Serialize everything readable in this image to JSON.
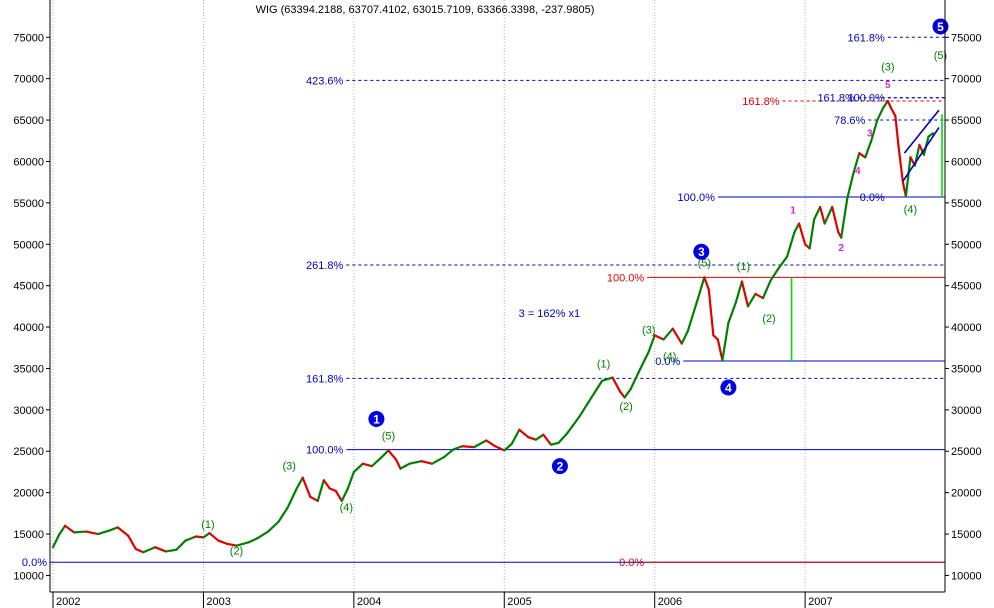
{
  "chart_data": {
    "type": "line",
    "title": "WIG (63394.2188, 63707.4102, 63015.7109, 63366.3398, -237.9805)",
    "y_ticks": [
      10000,
      15000,
      20000,
      25000,
      30000,
      35000,
      40000,
      45000,
      50000,
      55000,
      60000,
      65000,
      70000,
      75000
    ],
    "ylim": [
      8000,
      79500
    ],
    "x_ticks": [
      "2002",
      "2003",
      "2004",
      "2005",
      "2006",
      "2007"
    ],
    "xlim": [
      2001.98,
      2007.93
    ],
    "grid": "vertical",
    "series": [
      {
        "color_up": "#008000",
        "color_down": "#e00000",
        "points": [
          [
            2002.0,
            13400
          ],
          [
            2002.04,
            14900
          ],
          [
            2002.08,
            16000
          ],
          [
            2002.14,
            15200
          ],
          [
            2002.22,
            15300
          ],
          [
            2002.3,
            15000
          ],
          [
            2002.37,
            15400
          ],
          [
            2002.43,
            15800
          ],
          [
            2002.5,
            14800
          ],
          [
            2002.55,
            13200
          ],
          [
            2002.6,
            12800
          ],
          [
            2002.68,
            13400
          ],
          [
            2002.75,
            12900
          ],
          [
            2002.82,
            13100
          ],
          [
            2002.88,
            14200
          ],
          [
            2002.95,
            14700
          ],
          [
            2003.0,
            14600
          ],
          [
            2003.04,
            15100
          ],
          [
            2003.1,
            14200
          ],
          [
            2003.16,
            13800
          ],
          [
            2003.22,
            13600
          ],
          [
            2003.3,
            14000
          ],
          [
            2003.36,
            14500
          ],
          [
            2003.43,
            15300
          ],
          [
            2003.5,
            16500
          ],
          [
            2003.56,
            18200
          ],
          [
            2003.62,
            20500
          ],
          [
            2003.66,
            21800
          ],
          [
            2003.71,
            19500
          ],
          [
            2003.76,
            19000
          ],
          [
            2003.8,
            21500
          ],
          [
            2003.84,
            20500
          ],
          [
            2003.88,
            20200
          ],
          [
            2003.92,
            19000
          ],
          [
            2003.96,
            20500
          ],
          [
            2004.0,
            22500
          ],
          [
            2004.06,
            23500
          ],
          [
            2004.12,
            23200
          ],
          [
            2004.18,
            24200
          ],
          [
            2004.23,
            25100
          ],
          [
            2004.28,
            24000
          ],
          [
            2004.31,
            22900
          ],
          [
            2004.37,
            23500
          ],
          [
            2004.45,
            23800
          ],
          [
            2004.52,
            23500
          ],
          [
            2004.6,
            24300
          ],
          [
            2004.66,
            25200
          ],
          [
            2004.72,
            25600
          ],
          [
            2004.8,
            25500
          ],
          [
            2004.88,
            26300
          ],
          [
            2004.94,
            25600
          ],
          [
            2005.0,
            25100
          ],
          [
            2005.05,
            25900
          ],
          [
            2005.1,
            27600
          ],
          [
            2005.16,
            26700
          ],
          [
            2005.21,
            26400
          ],
          [
            2005.26,
            27000
          ],
          [
            2005.31,
            25800
          ],
          [
            2005.36,
            26000
          ],
          [
            2005.42,
            27200
          ],
          [
            2005.5,
            29200
          ],
          [
            2005.58,
            31500
          ],
          [
            2005.65,
            33500
          ],
          [
            2005.72,
            33900
          ],
          [
            2005.77,
            32200
          ],
          [
            2005.8,
            31500
          ],
          [
            2005.84,
            32500
          ],
          [
            2005.9,
            34800
          ],
          [
            2005.96,
            37000
          ],
          [
            2006.0,
            39000
          ],
          [
            2006.06,
            38500
          ],
          [
            2006.12,
            39800
          ],
          [
            2006.18,
            38000
          ],
          [
            2006.22,
            39500
          ],
          [
            2006.28,
            43000
          ],
          [
            2006.33,
            46000
          ],
          [
            2006.36,
            44500
          ],
          [
            2006.39,
            39000
          ],
          [
            2006.42,
            38500
          ],
          [
            2006.45,
            36000
          ],
          [
            2006.49,
            40500
          ],
          [
            2006.54,
            43000
          ],
          [
            2006.58,
            45500
          ],
          [
            2006.62,
            42500
          ],
          [
            2006.67,
            44000
          ],
          [
            2006.72,
            43500
          ],
          [
            2006.77,
            45600
          ],
          [
            2006.82,
            47000
          ],
          [
            2006.88,
            48500
          ],
          [
            2006.93,
            51500
          ],
          [
            2006.96,
            52500
          ],
          [
            2007.0,
            50000
          ],
          [
            2007.03,
            49500
          ],
          [
            2007.06,
            53000
          ],
          [
            2007.1,
            54500
          ],
          [
            2007.13,
            52500
          ],
          [
            2007.18,
            54500
          ],
          [
            2007.22,
            51500
          ],
          [
            2007.24,
            50800
          ],
          [
            2007.28,
            55500
          ],
          [
            2007.32,
            58500
          ],
          [
            2007.36,
            61000
          ],
          [
            2007.4,
            60500
          ],
          [
            2007.44,
            62500
          ],
          [
            2007.48,
            65000
          ],
          [
            2007.52,
            66500
          ],
          [
            2007.55,
            67300
          ],
          [
            2007.57,
            66500
          ],
          [
            2007.6,
            65500
          ],
          [
            2007.62,
            62000
          ],
          [
            2007.65,
            57500
          ],
          [
            2007.67,
            55800
          ],
          [
            2007.7,
            60500
          ],
          [
            2007.73,
            59500
          ],
          [
            2007.76,
            62000
          ],
          [
            2007.79,
            60800
          ],
          [
            2007.82,
            63000
          ],
          [
            2007.85,
            63400
          ]
        ]
      }
    ],
    "levels": [
      {
        "label": "161.8%",
        "value": 75000,
        "color": "#0000c0",
        "style": "dashed",
        "from": 2007.55,
        "to": 2007.93
      },
      {
        "label": "423.6%",
        "value": 69800,
        "color": "#0000c0",
        "style": "dashed",
        "from": 2003.95,
        "to": 2007.93
      },
      {
        "label": "161.8%",
        "value": 67300,
        "color": "#e00000",
        "style": "dashed",
        "from": 2006.85,
        "to": 2007.93
      },
      {
        "label": "161.8%",
        "value": 67700,
        "color": "#0000c0",
        "style": "dashed",
        "from": 2007.35,
        "to": 2007.93
      },
      {
        "label": "100.0%",
        "value": 67700,
        "color": "#0000c0",
        "style": "dashed",
        "from": 2007.55,
        "to": 2007.93
      },
      {
        "label": "78.6%",
        "value": 65000,
        "color": "#0000c0",
        "style": "dashed",
        "from": 2007.42,
        "to": 2007.93
      },
      {
        "label": "100.0%",
        "value": 55700,
        "color": "#0000c0",
        "style": "solid",
        "from": 2006.42,
        "to": 2007.93
      },
      {
        "label": "0.0%",
        "value": 55700,
        "color": "#0000c0",
        "style": "solid",
        "from": 2007.55,
        "to": 2007.93
      },
      {
        "label": "261.8%",
        "value": 47500,
        "color": "#0000c0",
        "style": "dashed",
        "from": 2003.95,
        "to": 2007.93
      },
      {
        "label": "100.0%",
        "value": 46000,
        "color": "#e00000",
        "style": "solid",
        "from": 2005.95,
        "to": 2007.93
      },
      {
        "label": "0.0%",
        "value": 35900,
        "color": "#0000c0",
        "style": "solid",
        "from": 2006.19,
        "to": 2007.93
      },
      {
        "label": "161.8%",
        "value": 33800,
        "color": "#0000c0",
        "style": "dashed",
        "from": 2003.95,
        "to": 2007.93
      },
      {
        "label": "100.0%",
        "value": 25200,
        "color": "#0000c0",
        "style": "solid",
        "from": 2003.95,
        "to": 2007.93
      },
      {
        "label": "0.0%",
        "value": 11600,
        "color": "#0000c0",
        "style": "solid",
        "from": 2001.98,
        "to": 2007.93
      },
      {
        "label": "0.0%",
        "value": 11600,
        "color": "#e00000",
        "style": "solid",
        "from": 2005.95,
        "to": 2007.93
      }
    ],
    "annotations": [
      {
        "text": "3 = 162% x1",
        "x": 2005.3,
        "y": 41200,
        "color": "#0000c0"
      }
    ],
    "wave_labels": [
      {
        "text": "(1)",
        "x": 2003.03,
        "y": 15700
      },
      {
        "text": "(2)",
        "x": 2003.22,
        "y": 12500
      },
      {
        "text": "(3)",
        "x": 2003.57,
        "y": 22800
      },
      {
        "text": "(4)",
        "x": 2003.95,
        "y": 17800
      },
      {
        "text": "(5)",
        "x": 2004.23,
        "y": 26400
      },
      {
        "text": "(1)",
        "x": 2005.66,
        "y": 35100
      },
      {
        "text": "(2)",
        "x": 2005.81,
        "y": 30000
      },
      {
        "text": "(3)",
        "x": 2005.96,
        "y": 39200
      },
      {
        "text": "(4)",
        "x": 2006.1,
        "y": 36000
      },
      {
        "text": "(5)",
        "x": 2006.33,
        "y": 47300
      },
      {
        "text": "(1)",
        "x": 2006.59,
        "y": 46900
      },
      {
        "text": "(2)",
        "x": 2006.76,
        "y": 40600
      },
      {
        "text": "(3)",
        "x": 2007.55,
        "y": 71000
      },
      {
        "text": "(4)",
        "x": 2007.7,
        "y": 53800
      },
      {
        "text": "(5)",
        "x": 2007.9,
        "y": 72400
      }
    ],
    "minor_labels": [
      {
        "text": "1",
        "x": 2006.92,
        "y": 53700
      },
      {
        "text": "2",
        "x": 2007.24,
        "y": 49200
      },
      {
        "text": "3",
        "x": 2007.43,
        "y": 63000
      },
      {
        "text": "4",
        "x": 2007.35,
        "y": 58500
      },
      {
        "text": "5",
        "x": 2007.55,
        "y": 68900
      }
    ],
    "circled_labels": [
      {
        "text": "1",
        "x": 2004.15,
        "y": 28900
      },
      {
        "text": "2",
        "x": 2005.37,
        "y": 23200
      },
      {
        "text": "3",
        "x": 2006.31,
        "y": 49100
      },
      {
        "text": "4",
        "x": 2006.49,
        "y": 32700
      },
      {
        "text": "5",
        "x": 2007.9,
        "y": 76300
      }
    ],
    "segments": [
      {
        "x1": 2006.91,
        "y1": 35900,
        "x2": 2006.91,
        "y2": 46000,
        "color": "#00e000"
      },
      {
        "x1": 2007.91,
        "y1": 55700,
        "x2": 2007.91,
        "y2": 65700,
        "color": "#00e000"
      },
      {
        "x1": 2007.65,
        "y1": 57600,
        "x2": 2007.89,
        "y2": 64100,
        "color": "#0000c0"
      },
      {
        "x1": 2007.66,
        "y1": 61000,
        "x2": 2007.89,
        "y2": 66200,
        "color": "#0000c0"
      }
    ]
  }
}
